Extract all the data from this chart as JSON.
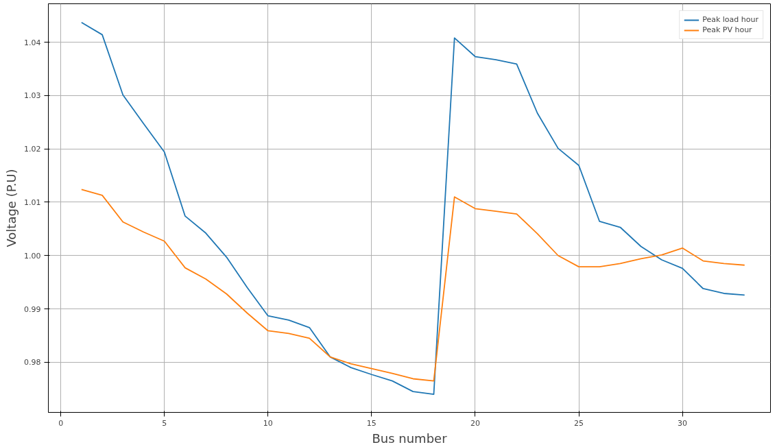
{
  "chart_data": {
    "type": "line",
    "xlabel": "Bus number",
    "ylabel": "Voltage (P.U)",
    "x": [
      1,
      2,
      3,
      4,
      5,
      6,
      7,
      8,
      9,
      10,
      11,
      12,
      13,
      14,
      15,
      16,
      17,
      18,
      19,
      20,
      21,
      22,
      23,
      24,
      25,
      26,
      27,
      28,
      29,
      30,
      31,
      32,
      33
    ],
    "series": [
      {
        "name": "Peak load hour",
        "color": "#1f77b4",
        "values": [
          1.0437,
          1.0414,
          1.0301,
          1.0247,
          1.0194,
          1.0074,
          1.0042,
          0.9997,
          0.994,
          0.9887,
          0.9879,
          0.9865,
          0.981,
          0.979,
          0.9777,
          0.9765,
          0.9745,
          0.974,
          1.0408,
          1.0373,
          1.0367,
          1.0359,
          1.0267,
          1.0201,
          1.0169,
          1.0064,
          1.0053,
          1.0017,
          0.9992,
          0.9976,
          0.9938,
          0.9929,
          0.9926
        ]
      },
      {
        "name": "Peak PV hour",
        "color": "#ff7f0e",
        "values": [
          1.0124,
          1.0113,
          1.0063,
          1.0044,
          1.0027,
          0.9977,
          0.9956,
          0.9928,
          0.9892,
          0.9859,
          0.9854,
          0.9845,
          0.981,
          0.9797,
          0.9788,
          0.9779,
          0.9769,
          0.9765,
          1.011,
          1.0088,
          1.0083,
          1.0078,
          1.0041,
          1.0,
          0.9979,
          0.9979,
          0.9985,
          0.9994,
          1.0001,
          1.0014,
          0.999,
          0.9985,
          0.9982
        ]
      }
    ],
    "xlim": [
      -0.6,
      34.25
    ],
    "ylim": [
      0.9706,
      1.0472
    ],
    "xticks": [
      0,
      5,
      10,
      15,
      20,
      25,
      30
    ],
    "yticks": [
      {
        "value": 0.98,
        "label": "0.98"
      },
      {
        "value": 0.99,
        "label": "0.99"
      },
      {
        "value": 1.0,
        "label": "1.00"
      },
      {
        "value": 1.01,
        "label": "1.01"
      },
      {
        "value": 1.02,
        "label": "1.02"
      },
      {
        "value": 1.03,
        "label": "1.03"
      },
      {
        "value": 1.04,
        "label": "1.04"
      }
    ],
    "grid": true,
    "legend": "top right",
    "marker": "none",
    "line_style": "solid"
  }
}
